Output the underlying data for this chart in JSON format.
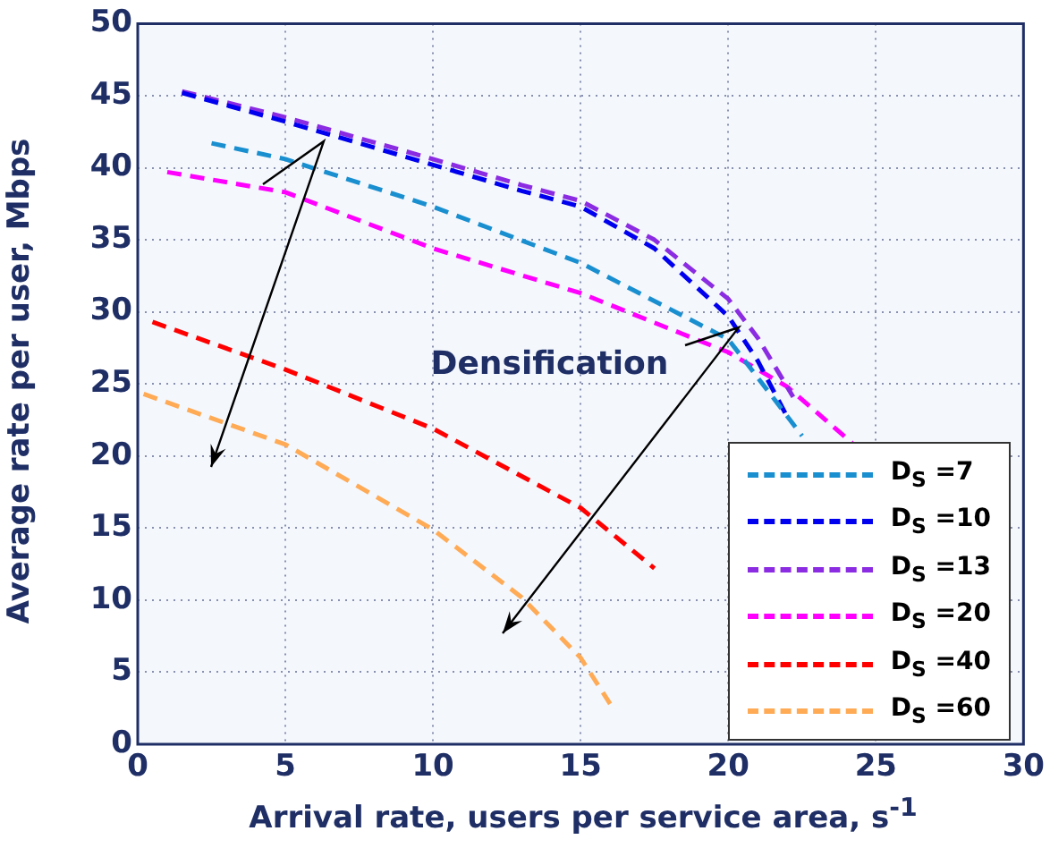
{
  "chart_data": {
    "type": "line",
    "xlabel": "Arrival rate, users per service area, s$^{-1}$",
    "ylabel": "Average rate per user, Mbps",
    "xlim": [
      0,
      30
    ],
    "xticks": [
      0,
      5,
      10,
      15,
      20,
      25,
      30
    ],
    "ylim": [
      0,
      50
    ],
    "yticks": [
      0,
      5,
      10,
      15,
      20,
      25,
      30,
      35,
      40,
      45,
      50
    ],
    "grid": true,
    "legend": "bottom right",
    "marker": "none",
    "line_style": "dashed",
    "annotations": [
      "Densification"
    ],
    "series": [
      {
        "name": "D$_{S}$ =7",
        "color": "#1a8fd0",
        "x": [
          2.5,
          5,
          10,
          15,
          20,
          21.5,
          22.5
        ],
        "values": [
          41.7,
          40.6,
          37.3,
          33.4,
          28.1,
          24.1,
          21.4
        ]
      },
      {
        "name": "D$_{S}$ =10",
        "color": "#0000ee",
        "x": [
          1.5,
          5,
          10,
          13,
          15,
          17.5,
          20,
          21,
          22
        ],
        "values": [
          45.2,
          43.2,
          40.2,
          38.4,
          37.3,
          34.4,
          29.7,
          26.6,
          22.7
        ]
      },
      {
        "name": "D$_{S}$ =13",
        "color": "#8b2be2",
        "x": [
          1.5,
          5,
          10,
          13,
          15,
          17.5,
          20,
          21,
          22.2
        ],
        "values": [
          45.3,
          43.5,
          40.6,
          38.8,
          37.7,
          35.0,
          30.9,
          28.2,
          24.1
        ]
      },
      {
        "name": "D$_{S}$ =20",
        "color": "#ff00ff",
        "x": [
          1,
          5,
          10,
          15,
          20,
          22,
          24.2
        ],
        "values": [
          39.7,
          38.3,
          34.4,
          31.3,
          27.2,
          24.8,
          20.9
        ]
      },
      {
        "name": "D$_{S}$ =40",
        "color": "#ff0000",
        "x": [
          0.5,
          5,
          10,
          15,
          17.5
        ],
        "values": [
          29.3,
          26.0,
          21.9,
          16.4,
          12.2
        ]
      },
      {
        "name": "D$_{S}$ =60",
        "color": "#ffaa55",
        "x": [
          0.2,
          5,
          10,
          13,
          15,
          16
        ],
        "values": [
          24.3,
          20.8,
          14.9,
          10.2,
          6.0,
          2.8
        ]
      }
    ]
  }
}
